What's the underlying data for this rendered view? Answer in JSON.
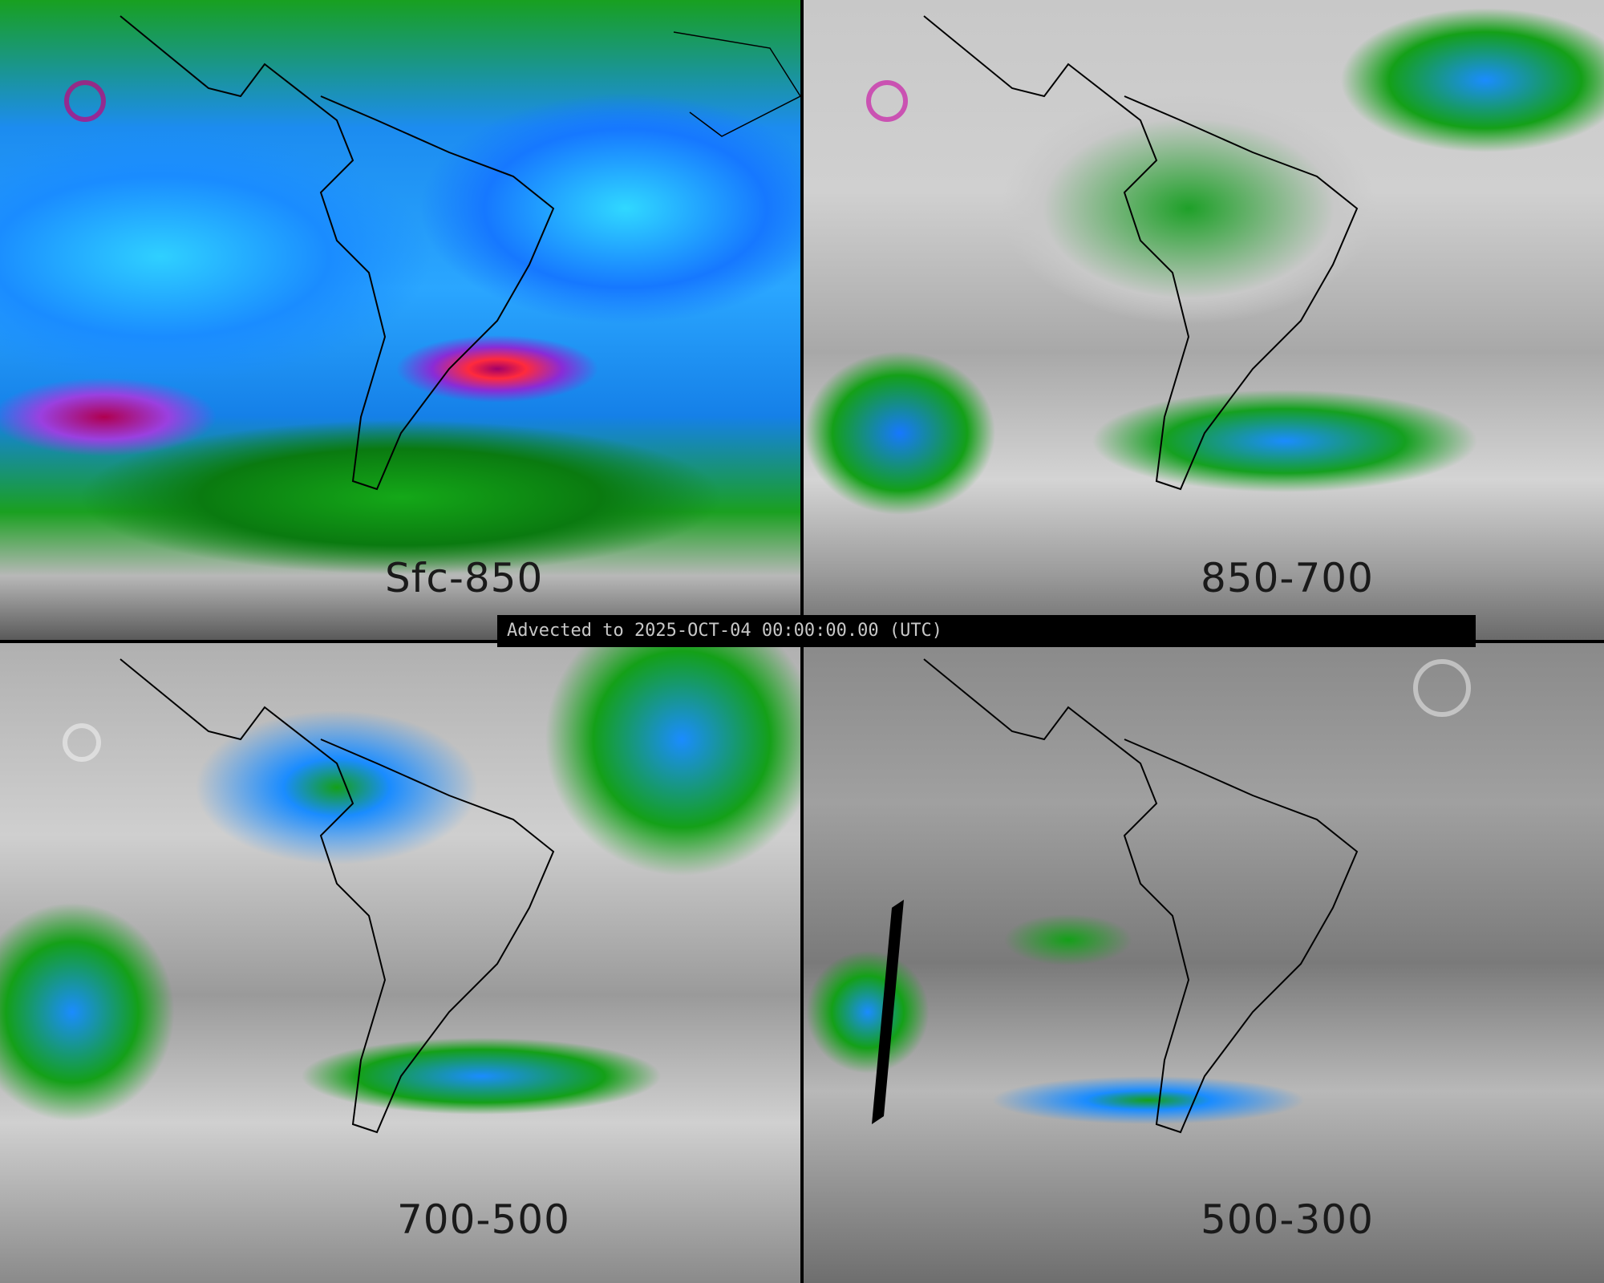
{
  "panels": [
    {
      "label": "Sfc-850"
    },
    {
      "label": "850-700"
    },
    {
      "label": "700-500"
    },
    {
      "label": "500-300"
    }
  ],
  "banner": {
    "text": "Advected to 2025-OCT-04 00:00:00.00 (UTC)"
  },
  "colors": {
    "background": "#000000",
    "low": "#b8b8b8",
    "green": "#14a018",
    "blue": "#1a8cff",
    "cyan": "#2fd0ff",
    "purple": "#9a40e0",
    "red": "#ff2a3c",
    "coastline": "#000000"
  }
}
